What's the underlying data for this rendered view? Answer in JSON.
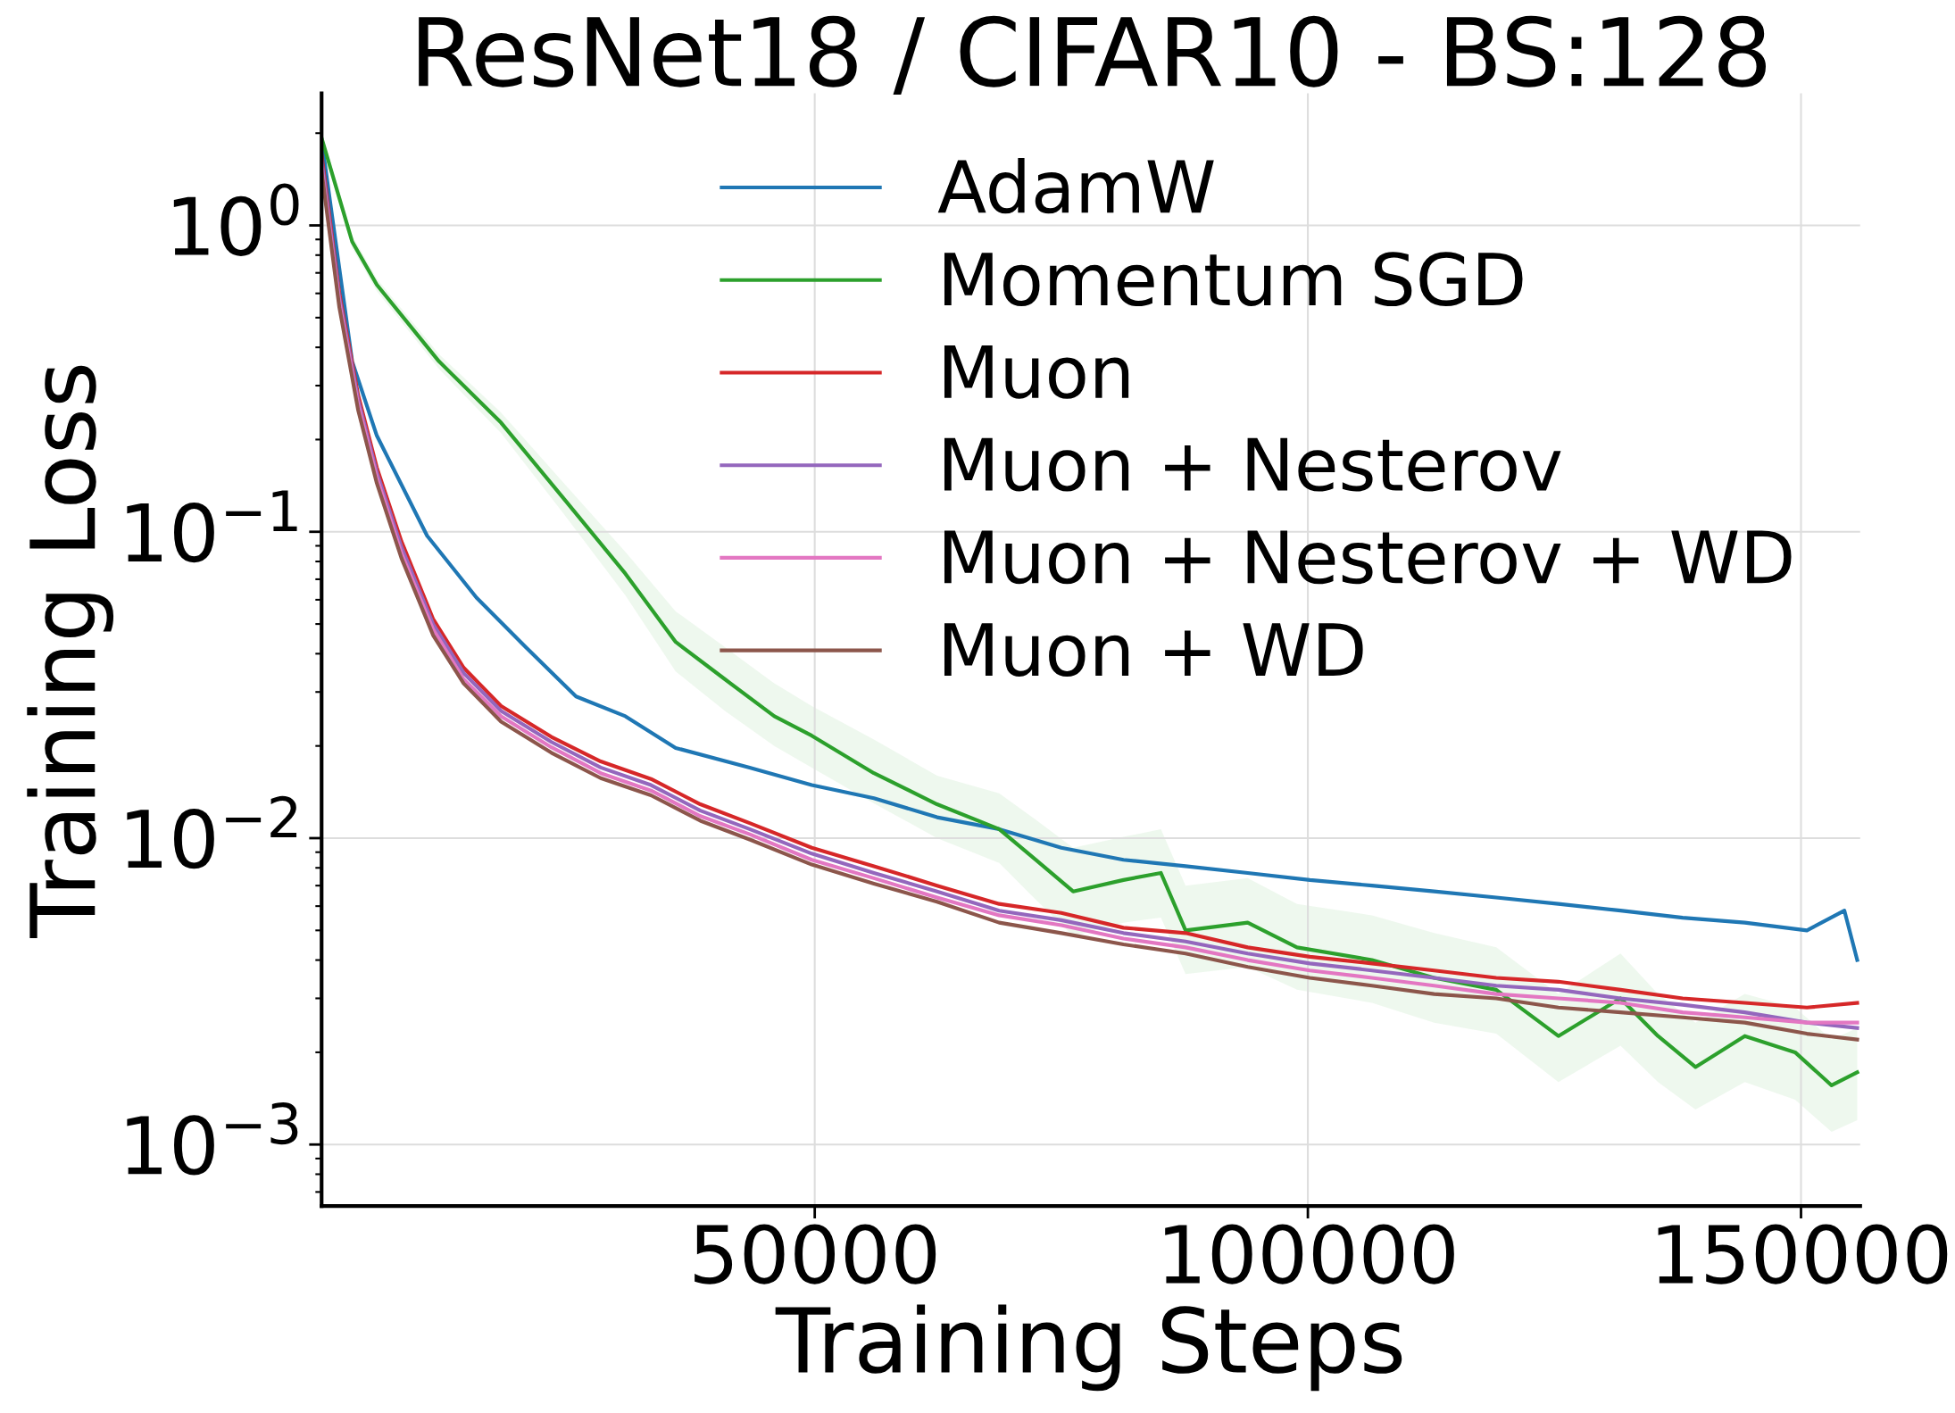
{
  "chart_data": {
    "type": "line",
    "title": "ResNet18 / CIFAR10 - BS:128",
    "xlabel": "Training Steps",
    "ylabel": "Training Loss",
    "log": "y",
    "grid": true,
    "legend": "top right",
    "xlim": [
      0,
      156000
    ],
    "xticks": [
      50000,
      100000,
      150000
    ],
    "ylim": [
      0.00063,
      2.7
    ],
    "yticks": [
      {
        "value": 1,
        "label": "10$^{0}$"
      },
      {
        "value": 0.1,
        "label": "10$^{−1}$"
      },
      {
        "value": 0.01,
        "label": "10$^{−2}$"
      },
      {
        "value": 0.001,
        "label": "10$^{−3}$"
      }
    ],
    "series": [
      {
        "name": "AdamW",
        "color": "#1f77b4",
        "x": [
          0,
          3100,
          5600,
          10700,
          15700,
          20700,
          25800,
          30800,
          35900,
          43400,
          49700,
          56000,
          62400,
          68700,
          75000,
          81300,
          87600,
          93900,
          100200,
          106500,
          112800,
          119100,
          125400,
          131700,
          138000,
          144300,
          150600,
          154400,
          155700
        ],
        "values": [
          1.9,
          0.36,
          0.206,
          0.097,
          0.061,
          0.042,
          0.029,
          0.025,
          0.0197,
          0.017,
          0.0149,
          0.0135,
          0.0117,
          0.0107,
          0.0093,
          0.0085,
          0.0081,
          0.0077,
          0.0073,
          0.007,
          0.0067,
          0.0064,
          0.0061,
          0.0058,
          0.0055,
          0.0053,
          0.005,
          0.0058,
          0.004
        ]
      },
      {
        "name": "Momentum SGD",
        "color": "#2ca02c",
        "x": [
          0,
          3100,
          5600,
          11900,
          18200,
          24500,
          30800,
          35900,
          40900,
          45900,
          49700,
          56000,
          62400,
          68700,
          72400,
          76200,
          81300,
          85100,
          87600,
          93900,
          98900,
          106500,
          112800,
          119100,
          125400,
          131700,
          135500,
          139300,
          144300,
          149400,
          153100,
          155700
        ],
        "values": [
          1.93,
          0.885,
          0.64,
          0.36,
          0.227,
          0.129,
          0.073,
          0.0437,
          0.033,
          0.025,
          0.0216,
          0.0163,
          0.0129,
          0.0107,
          0.0085,
          0.0067,
          0.0073,
          0.0077,
          0.005,
          0.0053,
          0.0044,
          0.004,
          0.0035,
          0.0032,
          0.00226,
          0.003,
          0.00226,
          0.00179,
          0.00226,
          0.002,
          0.00156,
          0.00172
        ],
        "lower": [
          1.84,
          0.845,
          0.61,
          0.34,
          0.21,
          0.115,
          0.062,
          0.035,
          0.026,
          0.02,
          0.017,
          0.013,
          0.01,
          0.0083,
          0.0063,
          0.0048,
          0.0053,
          0.0055,
          0.0036,
          0.0038,
          0.0032,
          0.0029,
          0.0025,
          0.0023,
          0.0016,
          0.0021,
          0.0016,
          0.0013,
          0.0016,
          0.0014,
          0.0011,
          0.0012
        ],
        "upper": [
          2.02,
          0.927,
          0.67,
          0.38,
          0.245,
          0.145,
          0.086,
          0.055,
          0.042,
          0.032,
          0.027,
          0.021,
          0.016,
          0.014,
          0.0115,
          0.0093,
          0.0101,
          0.0107,
          0.007,
          0.0074,
          0.0061,
          0.0056,
          0.0049,
          0.0044,
          0.0031,
          0.0042,
          0.0031,
          0.0025,
          0.0031,
          0.0028,
          0.0022,
          0.0024
        ]
      },
      {
        "name": "Muon",
        "color": "#d62728",
        "x": [
          0,
          1800,
          3700,
          5600,
          8100,
          11300,
          14400,
          18200,
          23300,
          28300,
          33400,
          38400,
          43400,
          49700,
          56000,
          62400,
          68700,
          75000,
          81300,
          87600,
          93900,
          100200,
          106500,
          112800,
          119100,
          125400,
          131700,
          138000,
          144300,
          150600,
          155700
        ],
        "values": [
          1.7,
          0.6,
          0.28,
          0.162,
          0.093,
          0.052,
          0.036,
          0.027,
          0.0214,
          0.0178,
          0.0156,
          0.0129,
          0.0112,
          0.0093,
          0.0081,
          0.007,
          0.0061,
          0.0057,
          0.0051,
          0.0049,
          0.0044,
          0.0041,
          0.0039,
          0.0037,
          0.0035,
          0.0034,
          0.0032,
          0.003,
          0.0029,
          0.0028,
          0.0029
        ]
      },
      {
        "name": "Muon + Nesterov",
        "color": "#9467bd",
        "x": [
          0,
          1800,
          3700,
          5600,
          8100,
          11300,
          14400,
          18200,
          23300,
          28300,
          33400,
          38400,
          43400,
          49700,
          56000,
          62400,
          68700,
          75000,
          81300,
          87600,
          93900,
          100200,
          106500,
          112800,
          119100,
          125400,
          131700,
          138000,
          144300,
          150600,
          155700
        ],
        "values": [
          1.63,
          0.58,
          0.27,
          0.156,
          0.089,
          0.05,
          0.0346,
          0.026,
          0.0206,
          0.017,
          0.0149,
          0.0123,
          0.0107,
          0.0089,
          0.0077,
          0.0067,
          0.0058,
          0.0054,
          0.0049,
          0.0046,
          0.0042,
          0.0039,
          0.0037,
          0.0035,
          0.0033,
          0.0032,
          0.003,
          0.00286,
          0.0027,
          0.0025,
          0.0024
        ]
      },
      {
        "name": "Muon + Nesterov + WD",
        "color": "#e377c2",
        "x": [
          0,
          1800,
          3700,
          5600,
          8100,
          11300,
          14400,
          18200,
          23300,
          28300,
          33400,
          38400,
          43400,
          49700,
          56000,
          62400,
          68700,
          75000,
          81300,
          87600,
          93900,
          100200,
          106500,
          112800,
          119100,
          125400,
          131700,
          138000,
          144300,
          150600,
          155700
        ],
        "values": [
          1.55,
          0.56,
          0.26,
          0.15,
          0.085,
          0.048,
          0.033,
          0.025,
          0.0198,
          0.0163,
          0.0143,
          0.0118,
          0.0103,
          0.0085,
          0.0074,
          0.0064,
          0.0056,
          0.0052,
          0.0047,
          0.0044,
          0.004,
          0.0037,
          0.0035,
          0.0033,
          0.0031,
          0.003,
          0.0029,
          0.0027,
          0.0026,
          0.0025,
          0.0025
        ]
      },
      {
        "name": "Muon + WD",
        "color": "#8c564b",
        "x": [
          0,
          1800,
          3700,
          5600,
          8100,
          11300,
          14400,
          18200,
          23300,
          28300,
          33400,
          38400,
          43400,
          49700,
          56000,
          62400,
          68700,
          75000,
          81300,
          87600,
          93900,
          100200,
          106500,
          112800,
          119100,
          125400,
          131700,
          138000,
          144300,
          150600,
          155700
        ],
        "values": [
          1.5,
          0.54,
          0.25,
          0.144,
          0.082,
          0.046,
          0.032,
          0.024,
          0.019,
          0.0157,
          0.0138,
          0.0114,
          0.0099,
          0.0082,
          0.0071,
          0.0062,
          0.0053,
          0.0049,
          0.0045,
          0.0042,
          0.0038,
          0.0035,
          0.0033,
          0.0031,
          0.003,
          0.0028,
          0.0027,
          0.0026,
          0.0025,
          0.0023,
          0.0022
        ]
      }
    ]
  }
}
